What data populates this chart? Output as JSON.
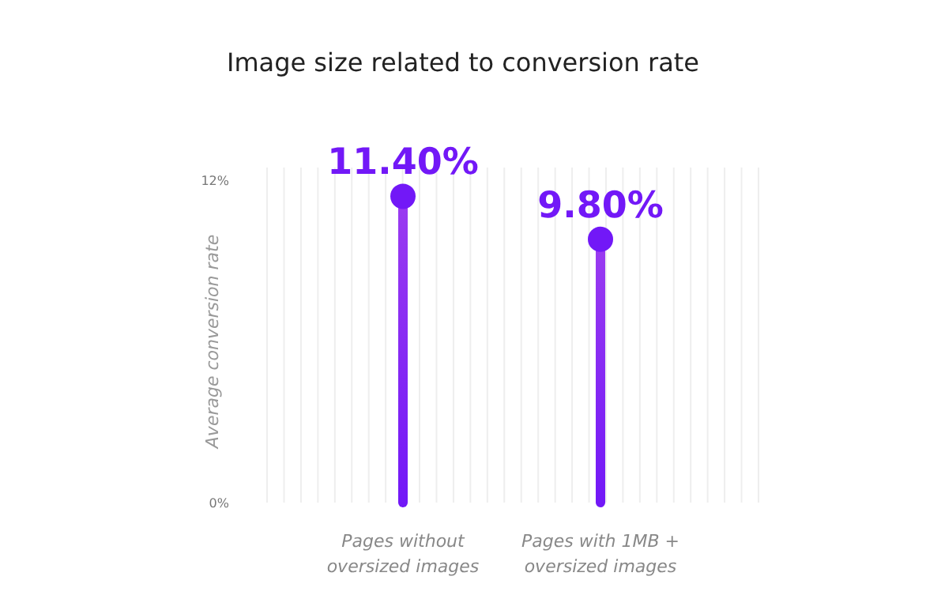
{
  "chart_data": {
    "type": "lollipop",
    "title": "Image size related to conversion rate",
    "ylabel": "Average conversion rate",
    "categories": [
      "Pages without oversized images",
      "Pages with 1MB + oversized images"
    ],
    "values": [
      11.4,
      9.8
    ],
    "value_labels": [
      "11.40%",
      "9.80%"
    ],
    "color": "#7218f7",
    "ylim": [
      0,
      12
    ],
    "yticks": [
      {
        "value": 0,
        "label": "0%"
      },
      {
        "value": 12,
        "label": "12%"
      }
    ],
    "grid": "x",
    "marker": "circle"
  }
}
